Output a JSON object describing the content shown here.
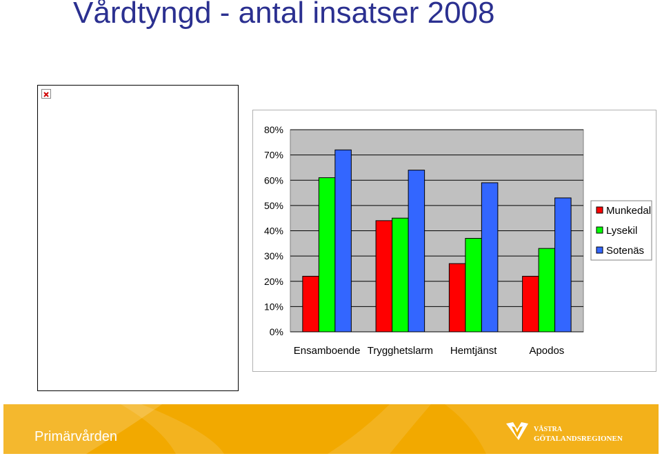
{
  "title": "Vårdtyngd - antal insatser 2008",
  "chart_data": {
    "type": "bar",
    "categories": [
      "Ensamboende",
      "Trygghetslarm",
      "Hemtjänst",
      "Apodos"
    ],
    "series": [
      {
        "name": "Munkedal",
        "color": "#ff0000",
        "values": [
          22,
          44,
          27,
          22
        ]
      },
      {
        "name": "Lysekil",
        "color": "#00ff00",
        "values": [
          61,
          45,
          37,
          33
        ]
      },
      {
        "name": "Sotenäs",
        "color": "#3366ff",
        "values": [
          72,
          64,
          59,
          53
        ]
      }
    ],
    "yticks": [
      "0%",
      "10%",
      "20%",
      "30%",
      "40%",
      "50%",
      "60%",
      "70%",
      "80%"
    ],
    "ylim": [
      0,
      80
    ],
    "plot_background": "#c0c0c0",
    "grid": true,
    "legend_position": "right"
  },
  "footer": {
    "label": "Primärvården",
    "org_line1": "VÄSTRA",
    "org_line2": "GÖTALANDSREGIONEN",
    "color": "#f2a900"
  },
  "placeholder": {
    "icon": "broken-image-icon"
  }
}
